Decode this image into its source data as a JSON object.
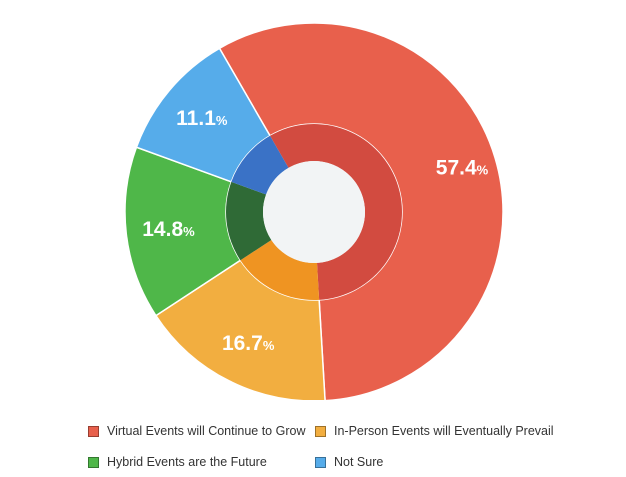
{
  "chart_data": {
    "type": "pie",
    "variant": "donut",
    "title": "",
    "series": [
      {
        "name": "Virtual Events will Continue to Grow",
        "value": 57.4,
        "label": "57.4",
        "color": "#e8604c",
        "inner_color": "#d24b40"
      },
      {
        "name": "In-Person Events will Eventually Prevail",
        "value": 16.7,
        "label": "16.7",
        "color": "#f2ae40",
        "inner_color": "#ef9422"
      },
      {
        "name": "Hybrid Events are the Future",
        "value": 14.8,
        "label": "14.8",
        "color": "#4fb749",
        "inner_color": "#2f6a36"
      },
      {
        "name": "Not Sure",
        "value": 11.1,
        "label": "11.1",
        "color": "#56acea",
        "inner_color": "#3a72c6"
      }
    ],
    "percent_suffix": "%",
    "center_color": "#f2f4f5",
    "legend_position": "bottom"
  }
}
